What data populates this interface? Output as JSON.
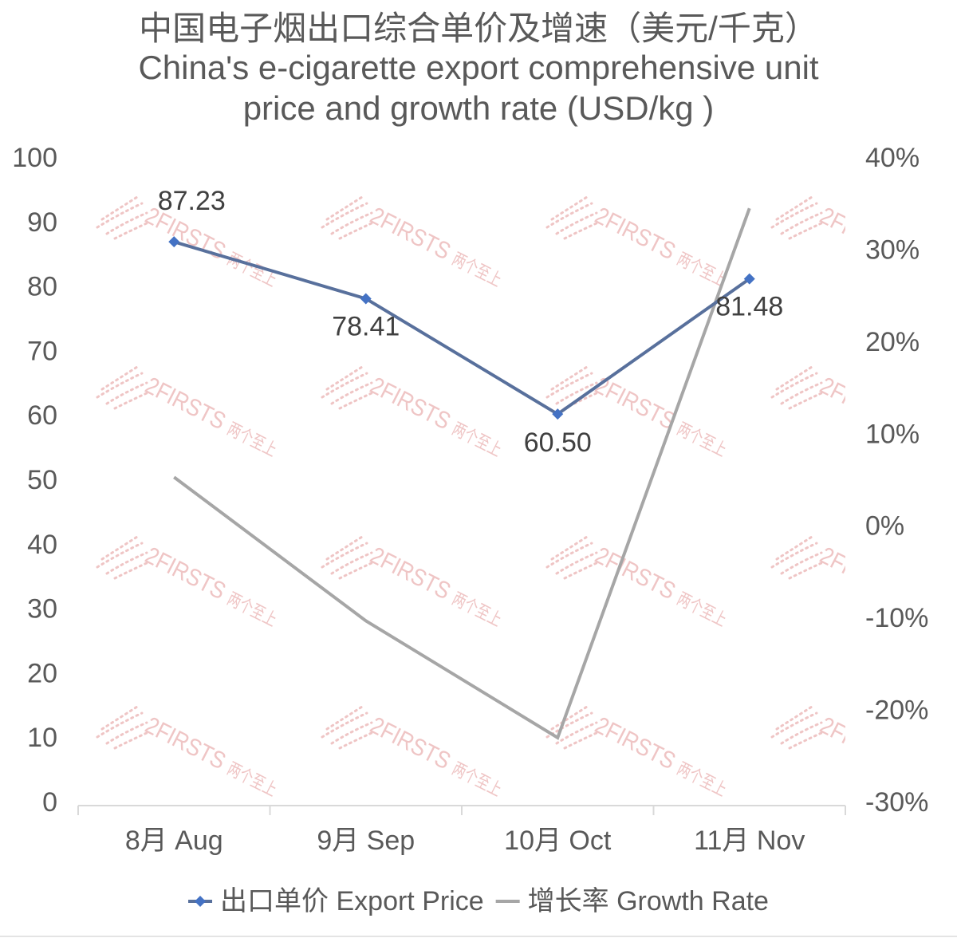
{
  "chart_data": {
    "type": "line",
    "title": [
      "中国电子烟出口综合单价及增速（美元/千克）",
      "China's e-cigarette export comprehensive unit",
      "price and growth rate (USD/kg )"
    ],
    "categories": [
      "8月 Aug",
      "9月 Sep",
      "10月 Oct",
      "11月 Nov"
    ],
    "ylim": [
      0,
      100
    ],
    "yticks": [
      "0",
      "10",
      "20",
      "30",
      "40",
      "50",
      "60",
      "70",
      "80",
      "90",
      "100"
    ],
    "y2lim": [
      -30,
      40
    ],
    "y2ticks": [
      "-30%",
      "-20%",
      "-10%",
      "0%",
      "10%",
      "20%",
      "30%",
      "40%"
    ],
    "series": [
      {
        "name": "出口单价 Export Price",
        "axis": "left",
        "values": [
          87.23,
          78.41,
          60.5,
          81.48
        ],
        "labels": [
          "87.23",
          "78.41",
          "60.50",
          "81.48"
        ],
        "color": "#58709c",
        "marker": "diamond",
        "marker_color": "#4472c4"
      },
      {
        "name": "增长率 Growth Rate",
        "axis": "right",
        "values": [
          5.5,
          -10.1,
          -22.8,
          34.7
        ],
        "color": "#a6a6a6"
      }
    ],
    "grid": false,
    "legend": "bottom"
  },
  "watermark": {
    "brand": "2FIRSTS",
    "brand_cn": "两个至上",
    "color": "#efc5c5"
  }
}
